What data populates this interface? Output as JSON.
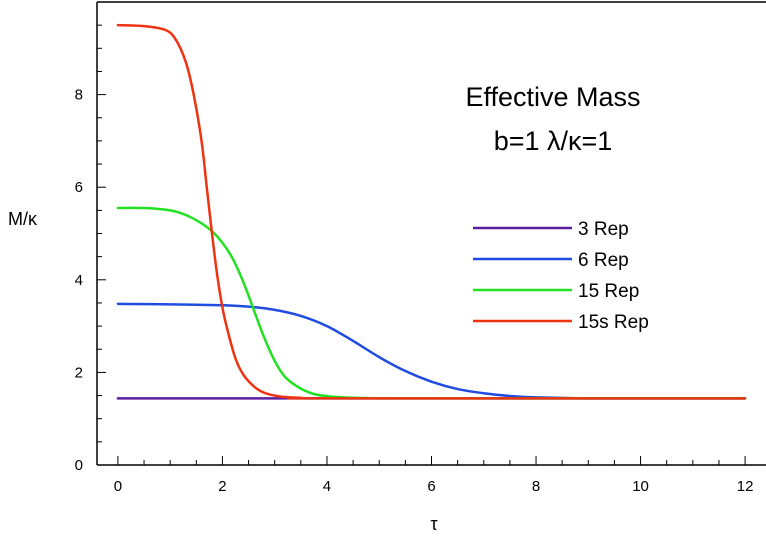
{
  "chart_data": {
    "type": "line",
    "title": "Effective Mass",
    "subtitle": "b=1 λ/κ=1",
    "xlabel": "τ",
    "ylabel": "M/κ",
    "xlim": [
      -0.4,
      12.4
    ],
    "ylim": [
      0,
      10
    ],
    "xticks": [
      "0",
      "2",
      "4",
      "6",
      "8",
      "10",
      "12"
    ],
    "yticks": [
      "0",
      "2",
      "4",
      "6",
      "8"
    ],
    "grid": false,
    "legend": "right",
    "series": [
      {
        "name": "3 Rep",
        "color": "#5a1fa0",
        "x": [
          0,
          12
        ],
        "y": [
          1.44,
          1.44
        ]
      },
      {
        "name": "6 Rep",
        "color": "#1f4be0",
        "x": [
          0,
          1,
          2,
          2.5,
          3,
          3.5,
          4,
          4.5,
          5,
          5.5,
          6,
          6.5,
          7,
          7.5,
          8,
          9,
          10,
          12
        ],
        "y": [
          3.48,
          3.47,
          3.45,
          3.42,
          3.35,
          3.22,
          3.0,
          2.68,
          2.33,
          2.03,
          1.8,
          1.64,
          1.55,
          1.49,
          1.46,
          1.44,
          1.44,
          1.44
        ]
      },
      {
        "name": "15 Rep",
        "color": "#22e022",
        "x": [
          0,
          0.5,
          1,
          1.3,
          1.6,
          1.8,
          2,
          2.2,
          2.4,
          2.6,
          2.8,
          3,
          3.2,
          3.5,
          3.8,
          4.2,
          5,
          6,
          12
        ],
        "y": [
          5.55,
          5.55,
          5.5,
          5.4,
          5.22,
          5.05,
          4.8,
          4.45,
          3.95,
          3.35,
          2.75,
          2.25,
          1.9,
          1.65,
          1.52,
          1.47,
          1.44,
          1.44,
          1.44
        ]
      },
      {
        "name": "15s Rep",
        "color": "#ee3311",
        "x": [
          0,
          0.5,
          0.9,
          1.1,
          1.3,
          1.45,
          1.6,
          1.7,
          1.8,
          1.9,
          2.0,
          2.1,
          2.25,
          2.4,
          2.6,
          2.8,
          3.1,
          3.5,
          4,
          12
        ],
        "y": [
          9.5,
          9.48,
          9.4,
          9.2,
          8.7,
          8.0,
          7.0,
          6.0,
          5.0,
          4.1,
          3.4,
          2.9,
          2.3,
          1.95,
          1.7,
          1.56,
          1.48,
          1.45,
          1.44,
          1.44
        ]
      }
    ]
  }
}
